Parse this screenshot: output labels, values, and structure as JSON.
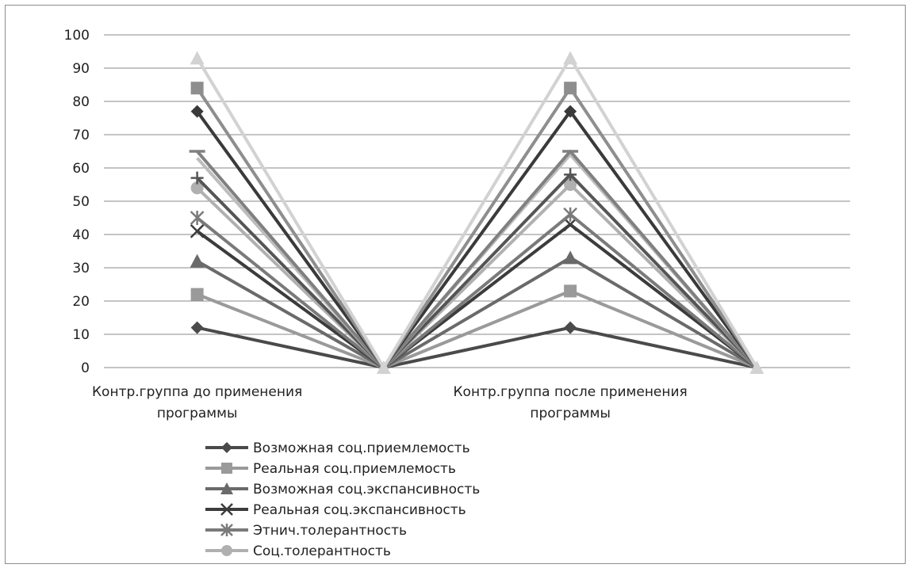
{
  "chart_data": {
    "type": "line",
    "categories": [
      [
        "Контр.группа до применения",
        "программы"
      ],
      [
        ""
      ],
      [
        "Контр.группа после применения",
        "программы"
      ],
      [
        ""
      ]
    ],
    "ylim": [
      0,
      100
    ],
    "yticks": [
      0,
      10,
      20,
      30,
      40,
      50,
      60,
      70,
      80,
      90,
      100
    ],
    "grid": true,
    "legend_position": "bottom",
    "series": [
      {
        "name": "Возможная соц.приемлемость",
        "values": [
          12,
          0,
          12,
          0
        ],
        "color": "#4a4a4a",
        "marker": "diamond"
      },
      {
        "name": "Реальная соц.приемлемость",
        "values": [
          22,
          0,
          23,
          0
        ],
        "color": "#9a9a9a",
        "marker": "square"
      },
      {
        "name": "Возможная соц.экспансивность",
        "values": [
          32,
          0,
          33,
          0
        ],
        "color": "#6a6a6a",
        "marker": "triangle"
      },
      {
        "name": "Реальная соц.экспансивность",
        "values": [
          41,
          0,
          43,
          0
        ],
        "color": "#3c3c3c",
        "marker": "x"
      },
      {
        "name": "Этнич.толерантность",
        "values": [
          45,
          0,
          46,
          0
        ],
        "color": "#7a7a7a",
        "marker": "star"
      },
      {
        "name": "Соц.толерантность",
        "values": [
          54,
          0,
          55,
          0
        ],
        "color": "#b0b0b0",
        "marker": "circle"
      },
      {
        "name": "",
        "values": [
          57,
          0,
          58,
          0
        ],
        "color": "#555555",
        "marker": "plus"
      },
      {
        "name": "",
        "values": [
          63,
          0,
          64,
          0
        ],
        "color": "#bdbdbd",
        "marker": "none"
      },
      {
        "name": "",
        "values": [
          65,
          0,
          65,
          0
        ],
        "color": "#808080",
        "marker": "dash"
      },
      {
        "name": "",
        "values": [
          77,
          0,
          77,
          0
        ],
        "color": "#3a3a3a",
        "marker": "diamond"
      },
      {
        "name": "",
        "values": [
          84,
          0,
          84,
          0
        ],
        "color": "#8e8e8e",
        "marker": "square"
      },
      {
        "name": "",
        "values": [
          93,
          0,
          93,
          0
        ],
        "color": "#d2d2d2",
        "marker": "triangle"
      }
    ]
  }
}
